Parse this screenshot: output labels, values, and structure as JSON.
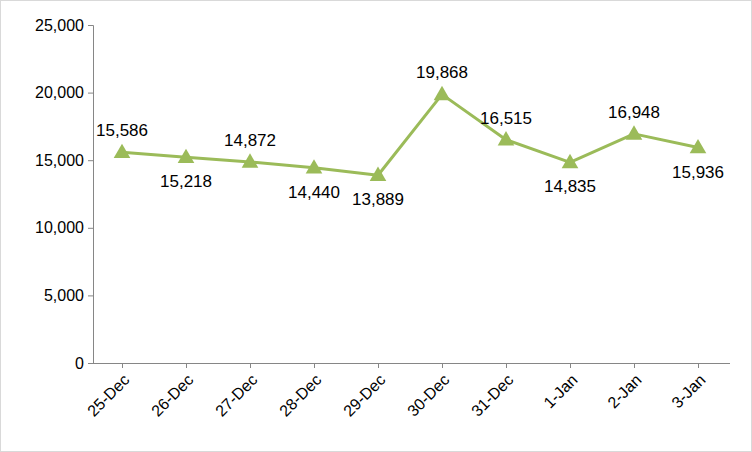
{
  "chart_data": {
    "type": "line",
    "categories": [
      "25-Dec",
      "26-Dec",
      "27-Dec",
      "28-Dec",
      "29-Dec",
      "30-Dec",
      "31-Dec",
      "1-Jan",
      "2-Jan",
      "3-Jan"
    ],
    "values": [
      15586,
      15218,
      14872,
      14440,
      13889,
      19868,
      16515,
      14835,
      16948,
      15936
    ],
    "value_labels": [
      "15,586",
      "15,218",
      "14,872",
      "14,440",
      "13,889",
      "19,868",
      "16,515",
      "14,835",
      "16,948",
      "15,936"
    ],
    "data_labels": true,
    "color": "#9bbb59",
    "marker": "triangle",
    "grid": false,
    "ylim": [
      0,
      25000
    ],
    "yticks": [
      0,
      {
        "value": 5000,
        "label": "5,000"
      },
      {
        "value": 10000,
        "label": "10,000"
      },
      {
        "value": 15000,
        "label": "15,000"
      },
      {
        "value": 20000,
        "label": "20,000"
      },
      {
        "value": 25000,
        "label": "25,000"
      }
    ]
  }
}
